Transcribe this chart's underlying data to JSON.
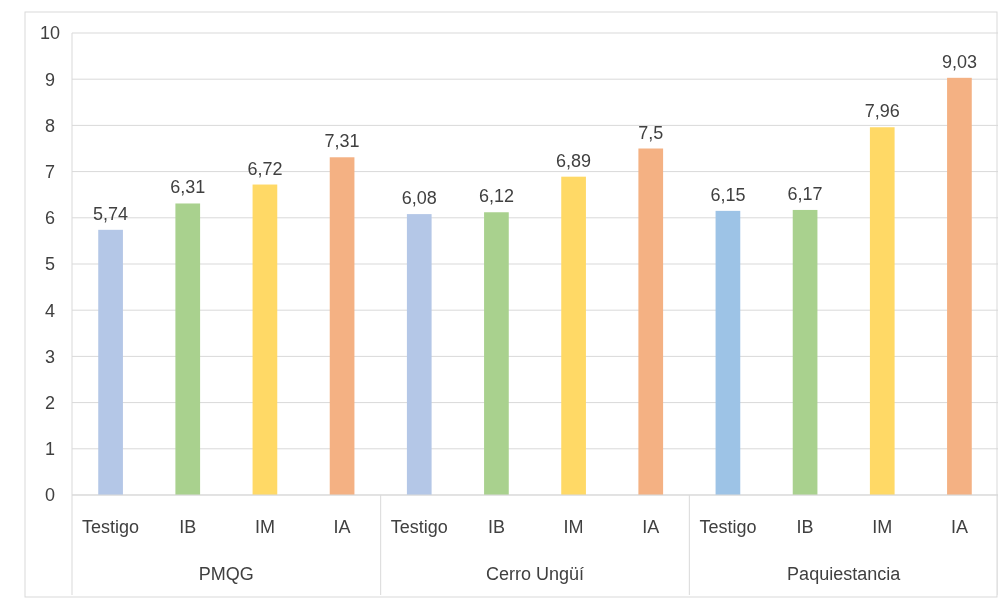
{
  "chart_data": {
    "type": "bar",
    "categories": [
      "Testigo",
      "IB",
      "IM",
      "IA",
      "Testigo",
      "IB",
      "IM",
      "IA",
      "Testigo",
      "IB",
      "IM",
      "IA"
    ],
    "values": [
      5.74,
      6.31,
      6.72,
      7.31,
      6.08,
      6.12,
      6.89,
      7.5,
      6.15,
      6.17,
      7.96,
      9.03
    ],
    "colors": [
      "#b4c7e7",
      "#a9d18e",
      "#ffd966",
      "#f4b183",
      "#b4c7e7",
      "#a9d18e",
      "#ffd966",
      "#f4b183",
      "#9dc3e6",
      "#a9d18e",
      "#ffd966",
      "#f4b183"
    ],
    "value_labels": [
      "5,74",
      "6,31",
      "6,72",
      "7,31",
      "6,08",
      "6,12",
      "6,89",
      "7,5",
      "6,15",
      "6,17",
      "7,96",
      "9,03"
    ],
    "ylim": [
      0,
      10
    ],
    "yticks": [
      0,
      1,
      2,
      3,
      4,
      5,
      6,
      7,
      8,
      9,
      10
    ],
    "grid": "y",
    "annotations": [
      "PMQG",
      "Cerro Ungüí",
      "Paquiestancia"
    ]
  }
}
